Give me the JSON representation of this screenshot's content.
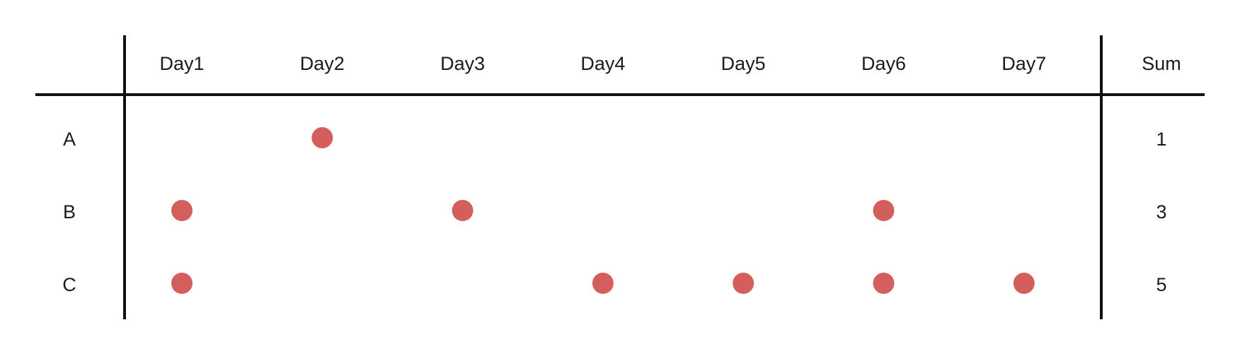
{
  "chart_data": {
    "type": "table",
    "columns": [
      "Day1",
      "Day2",
      "Day3",
      "Day4",
      "Day5",
      "Day6",
      "Day7"
    ],
    "sum_label": "Sum",
    "rows": [
      {
        "label": "A",
        "values": [
          0,
          1,
          0,
          0,
          0,
          0,
          0
        ],
        "sum": "1"
      },
      {
        "label": "B",
        "values": [
          1,
          0,
          1,
          0,
          0,
          1,
          0
        ],
        "sum": "3"
      },
      {
        "label": "C",
        "values": [
          1,
          0,
          0,
          1,
          1,
          1,
          1
        ],
        "sum": "5"
      }
    ],
    "marker_color": "#d45e5b",
    "grid": false
  }
}
